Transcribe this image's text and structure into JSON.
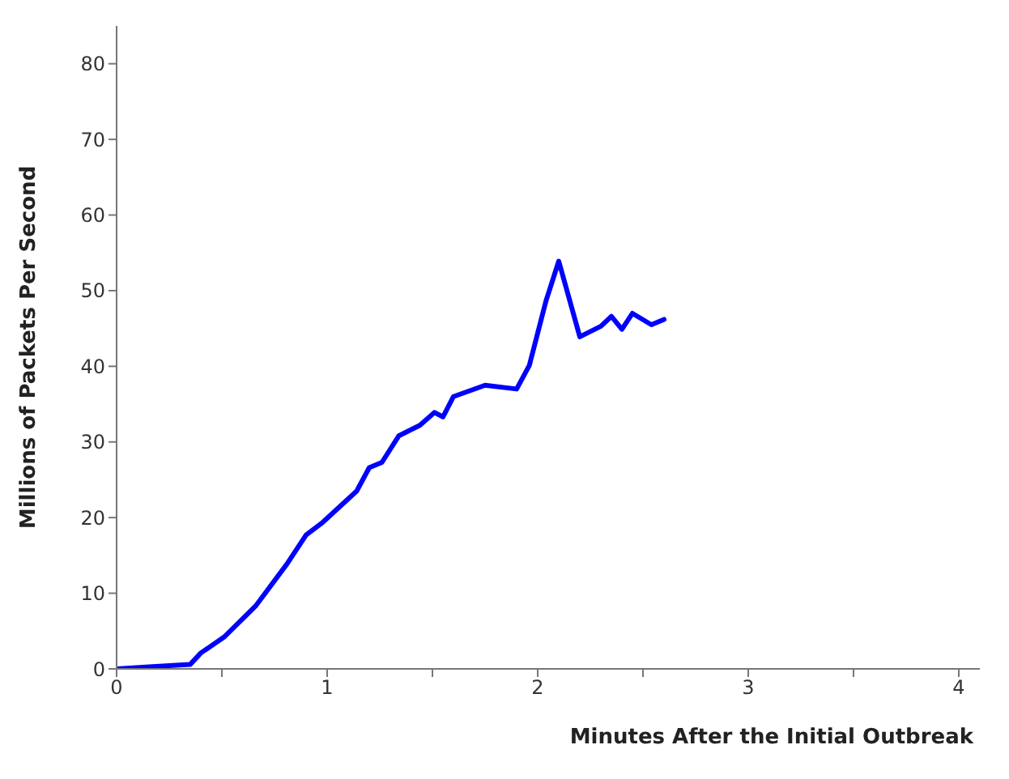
{
  "chart_data": {
    "type": "line",
    "xlabel": "Minutes After the Initial Outbreak",
    "ylabel": "Millions of Packets Per Second",
    "x": [
      0,
      0.17,
      0.35,
      0.4,
      0.51,
      0.66,
      0.81,
      0.9,
      0.98,
      1.14,
      1.2,
      1.26,
      1.34,
      1.44,
      1.51,
      1.55,
      1.6,
      1.75,
      1.9,
      1.96,
      2.04,
      2.1,
      2.2,
      2.3,
      2.35,
      2.4,
      2.45,
      2.54,
      2.6
    ],
    "series": [
      {
        "color": "#0000ff",
        "values": [
          0,
          0.3,
          0.6,
          2.1,
          4.2,
          8.3,
          13.9,
          17.7,
          19.4,
          23.5,
          26.6,
          27.3,
          30.8,
          32.2,
          33.9,
          33.3,
          36,
          37.5,
          37,
          40.1,
          48.7,
          53.9,
          43.9,
          45.3,
          46.6,
          44.9,
          47,
          45.5,
          46.2
        ]
      }
    ],
    "xlim": [
      0,
      4.1
    ],
    "ylim": [
      0,
      85
    ],
    "xticks": [
      0,
      {
        "value": 0.5,
        "label": null
      },
      1,
      {
        "value": 1.5,
        "label": null
      },
      2,
      {
        "value": 2.5,
        "label": null
      },
      3,
      {
        "value": 3.5,
        "label": null
      },
      4
    ],
    "yticks": [
      0,
      10,
      20,
      30,
      40,
      50,
      60,
      70,
      80
    ],
    "marker": "none",
    "line_style": "solid"
  }
}
